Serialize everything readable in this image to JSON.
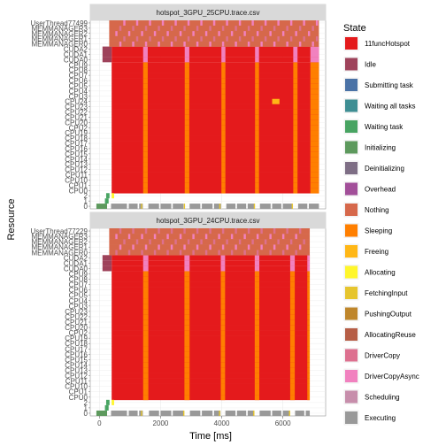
{
  "chart_data": {
    "type": "gantt",
    "xlabel": "Time [ms]",
    "ylabel": "Resource",
    "xlim": [
      -300,
      7400
    ],
    "xticks": [
      0,
      2000,
      4000,
      6000
    ],
    "legend": {
      "title": "State",
      "placement": "right",
      "items": [
        {
          "label": "11funcHotspot",
          "color": "#e41a1c"
        },
        {
          "label": "Idle",
          "color": "#9e425a"
        },
        {
          "label": "Submitting task",
          "color": "#4a72a6"
        },
        {
          "label": "Waiting all tasks",
          "color": "#3e8e93"
        },
        {
          "label": "Waiting task",
          "color": "#48a462"
        },
        {
          "label": "Initializing",
          "color": "#5d995d"
        },
        {
          "label": "Deinitializing",
          "color": "#7e6e85"
        },
        {
          "label": "Overhead",
          "color": "#a24f99"
        },
        {
          "label": "Nothing",
          "color": "#d6684b"
        },
        {
          "label": "Sleeping",
          "color": "#ff7f00"
        },
        {
          "label": "Freeing",
          "color": "#ffb716"
        },
        {
          "label": "Allocating",
          "color": "#fff62b"
        },
        {
          "label": "FetchingInput",
          "color": "#e6c52e"
        },
        {
          "label": "PushingOutput",
          "color": "#bf862b"
        },
        {
          "label": "AllocatingReuse",
          "color": "#b65e46"
        },
        {
          "label": "DriverCopy",
          "color": "#dd708f"
        },
        {
          "label": "DriverCopyAsync",
          "color": "#f181bf"
        },
        {
          "label": "Scheduling",
          "color": "#c78eab"
        },
        {
          "label": "Executing",
          "color": "#999999"
        }
      ]
    },
    "panels": [
      {
        "title": "hotspot_3GPU_25CPU.trace.csv",
        "resources": [
          "0",
          "1",
          "2",
          "CPU0",
          "CPU1",
          "CPU10",
          "CPU11",
          "CPU12",
          "CPU13",
          "CPU14",
          "CPU15",
          "CPU16",
          "CPU17",
          "CPU18",
          "CPU19",
          "CPU2",
          "CPU20",
          "CPU21",
          "CPU22",
          "CPU23",
          "CPU24",
          "CPU3",
          "CPU4",
          "CPU5",
          "CPU6",
          "CPU7",
          "CPU8",
          "CPU9",
          "CUDA0",
          "CUDA1",
          "CUDA2",
          "MEMMANAGER0",
          "MEMMANAGER1",
          "MEMMANAGER2",
          "MEMMANAGER3",
          "UserThread77499"
        ],
        "cpu_span": [
          400,
          7180
        ],
        "sleep_intervals": [
          [
            1430,
            1580
          ],
          [
            2790,
            2940
          ],
          [
            3990,
            4120
          ],
          [
            5090,
            5220
          ],
          [
            6340,
            6480
          ],
          [
            6900,
            7180
          ]
        ],
        "freeing_marks": [
          [
            5650,
            5890,
            20
          ]
        ],
        "cuda_span": [
          400,
          7180
        ],
        "nothing_span": [
          320,
          7180
        ],
        "executing_blocks": [
          [
            -100,
            250
          ],
          [
            380,
            900
          ],
          [
            960,
            1250
          ],
          [
            1300,
            1420
          ],
          [
            1600,
            1950
          ],
          [
            2000,
            2350
          ],
          [
            2400,
            2750
          ],
          [
            2950,
            3300
          ],
          [
            3350,
            3700
          ],
          [
            3750,
            3980
          ],
          [
            4150,
            4450
          ],
          [
            4500,
            4800
          ],
          [
            4850,
            5080
          ],
          [
            5250,
            5600
          ],
          [
            5650,
            5950
          ],
          [
            6000,
            6320
          ],
          [
            6500,
            6800
          ],
          [
            6850,
            7180
          ]
        ],
        "sleep_markers": [
          [
            1360,
            1400
          ],
          [
            2760,
            2800
          ],
          [
            3920,
            3960
          ],
          [
            5050,
            5090
          ],
          [
            6290,
            6330
          ]
        ]
      },
      {
        "title": "hotspot_3GPU_24CPU.trace.csv",
        "resources": [
          "0",
          "1",
          "2",
          "CPU0",
          "CPU1",
          "CPU10",
          "CPU11",
          "CPU12",
          "CPU13",
          "CPU14",
          "CPU15",
          "CPU16",
          "CPU17",
          "CPU18",
          "CPU19",
          "CPU2",
          "CPU20",
          "CPU21",
          "CPU22",
          "CPU23",
          "CPU3",
          "CPU4",
          "CPU5",
          "CPU6",
          "CPU7",
          "CPU8",
          "CPU9",
          "CUDA0",
          "CUDA1",
          "CUDA2",
          "MEMMANAGER0",
          "MEMMANAGER1",
          "MEMMANAGER2",
          "MEMMANAGER3",
          "UserThread77229"
        ],
        "cpu_span": [
          400,
          6880
        ],
        "sleep_intervals": [
          [
            1430,
            1600
          ],
          [
            2780,
            2950
          ],
          [
            3970,
            4110
          ],
          [
            5080,
            5230
          ],
          [
            6240,
            6390
          ],
          [
            6800,
            6880
          ]
        ],
        "freeing_marks": [],
        "cuda_span": [
          400,
          6880
        ],
        "nothing_span": [
          320,
          6880
        ],
        "executing_blocks": [
          [
            -100,
            250
          ],
          [
            380,
            900
          ],
          [
            960,
            1250
          ],
          [
            1300,
            1420
          ],
          [
            1620,
            1950
          ],
          [
            2000,
            2350
          ],
          [
            2400,
            2760
          ],
          [
            2960,
            3300
          ],
          [
            3350,
            3700
          ],
          [
            3750,
            3960
          ],
          [
            4120,
            4450
          ],
          [
            4500,
            4800
          ],
          [
            4850,
            5070
          ],
          [
            5240,
            5600
          ],
          [
            5650,
            5950
          ],
          [
            6000,
            6230
          ],
          [
            6400,
            6700
          ],
          [
            6750,
            6880
          ]
        ],
        "sleep_markers": [
          [
            1360,
            1400
          ],
          [
            2740,
            2780
          ],
          [
            3910,
            3950
          ],
          [
            5030,
            5070
          ],
          [
            6200,
            6240
          ]
        ]
      }
    ]
  }
}
